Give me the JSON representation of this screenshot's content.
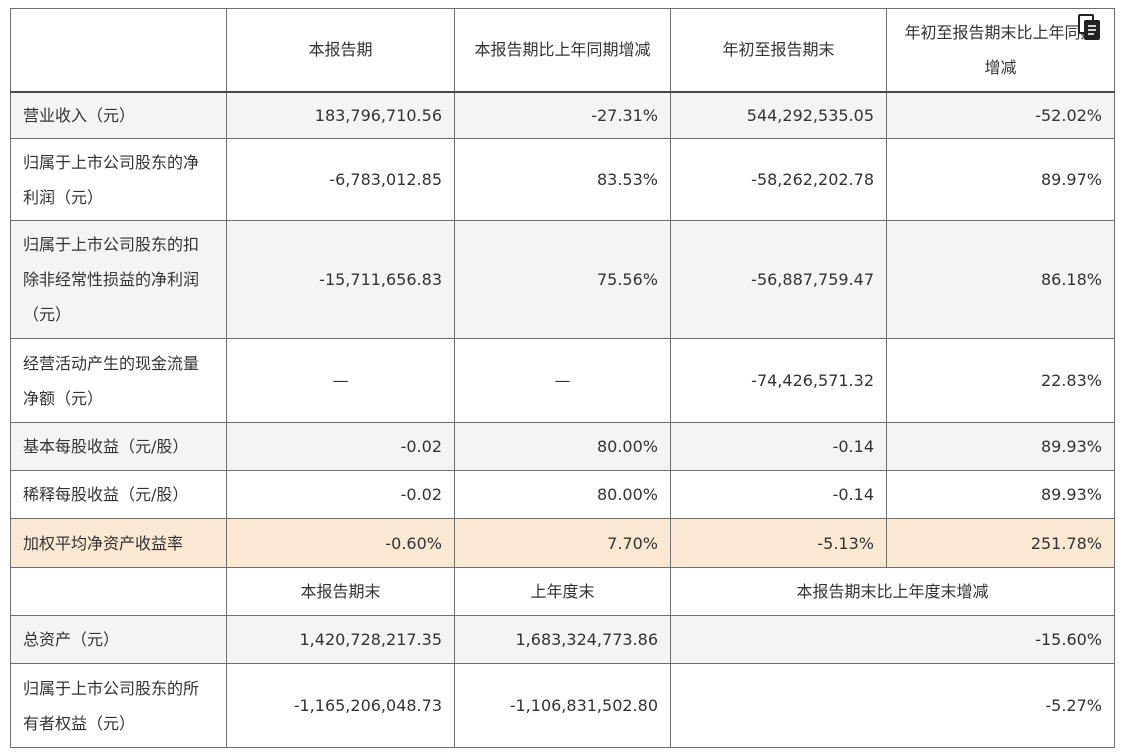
{
  "header": {
    "col1": "本报告期",
    "col2": "本报告期比上年同期增减",
    "col3": "年初至报告期末",
    "col4": "年初至报告期末比上年同期增减"
  },
  "rows": [
    {
      "label": "营业收入（元）",
      "v1": "183,796,710.56",
      "v2": "-27.31%",
      "v3": "544,292,535.05",
      "v4": "-52.02%"
    },
    {
      "label": "归属于上市公司股东的净利润（元）",
      "v1": "-6,783,012.85",
      "v2": "83.53%",
      "v3": "-58,262,202.78",
      "v4": "89.97%"
    },
    {
      "label": "归属于上市公司股东的扣除非经常性损益的净利润（元）",
      "v1": "-15,711,656.83",
      "v2": "75.56%",
      "v3": "-56,887,759.47",
      "v4": "86.18%"
    },
    {
      "label": "经营活动产生的现金流量净额（元）",
      "v1": "—",
      "v2": "—",
      "v3": "-74,426,571.32",
      "v4": "22.83%"
    },
    {
      "label": "基本每股收益（元/股）",
      "v1": "-0.02",
      "v2": "80.00%",
      "v3": "-0.14",
      "v4": "89.93%"
    },
    {
      "label": "稀释每股收益（元/股）",
      "v1": "-0.02",
      "v2": "80.00%",
      "v3": "-0.14",
      "v4": "89.93%"
    },
    {
      "label": "加权平均净资产收益率",
      "v1": "-0.60%",
      "v2": "7.70%",
      "v3": "-5.13%",
      "v4": "251.78%"
    }
  ],
  "header2": {
    "col1": "本报告期末",
    "col2": "上年度末",
    "col3": "本报告期末比上年度末增减"
  },
  "rows2": [
    {
      "label": "总资产（元）",
      "v1": "1,420,728,217.35",
      "v2": "1,683,324,773.86",
      "v3": "-15.60%"
    },
    {
      "label": "归属于上市公司股东的所有者权益（元）",
      "v1": "-1,165,206,048.73",
      "v2": "-1,106,831,502.80",
      "v3": "-5.27%"
    }
  ],
  "icons": {
    "copy": "copy-document-icon"
  }
}
